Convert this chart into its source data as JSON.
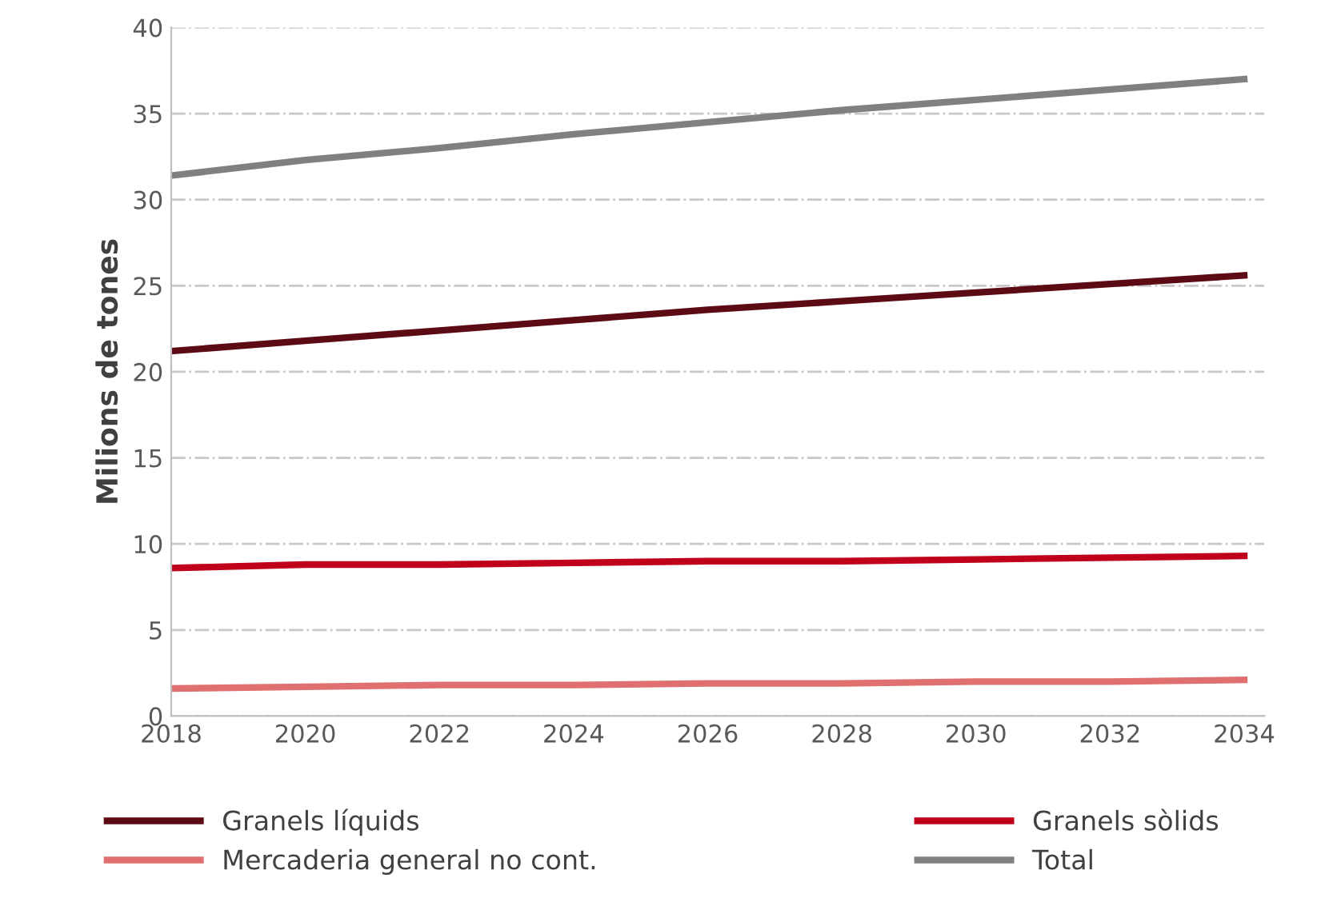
{
  "chart_data": {
    "type": "line",
    "ylabel": "Milions de tones",
    "x": [
      2018,
      2020,
      2022,
      2024,
      2026,
      2028,
      2030,
      2032,
      2034
    ],
    "series": [
      {
        "name": "Granels líquids",
        "color": "#5c0a14",
        "values": [
          21.2,
          21.8,
          22.4,
          23.0,
          23.6,
          24.1,
          24.6,
          25.1,
          25.6
        ]
      },
      {
        "name": "Granels sòlids",
        "color": "#c0001a",
        "values": [
          8.6,
          8.8,
          8.8,
          8.9,
          9.0,
          9.0,
          9.1,
          9.2,
          9.3
        ]
      },
      {
        "name": "Mercaderia general no cont.",
        "color": "#e07070",
        "values": [
          1.6,
          1.7,
          1.8,
          1.8,
          1.9,
          1.9,
          2.0,
          2.0,
          2.1
        ]
      },
      {
        "name": "Total",
        "color": "#808080",
        "values": [
          31.4,
          32.3,
          33.0,
          33.8,
          34.5,
          35.2,
          35.8,
          36.4,
          37.0
        ]
      }
    ],
    "xlim": [
      2018,
      2034.3
    ],
    "xticks": [
      2018,
      2020,
      2022,
      2024,
      2026,
      2028,
      2030,
      2032,
      2034
    ],
    "ylim": [
      0,
      40
    ],
    "yticks": [
      0,
      5,
      10,
      15,
      20,
      25,
      30,
      35,
      40
    ],
    "grid": "y",
    "legend": "bottom",
    "marker": "none",
    "line_style": "solid"
  }
}
